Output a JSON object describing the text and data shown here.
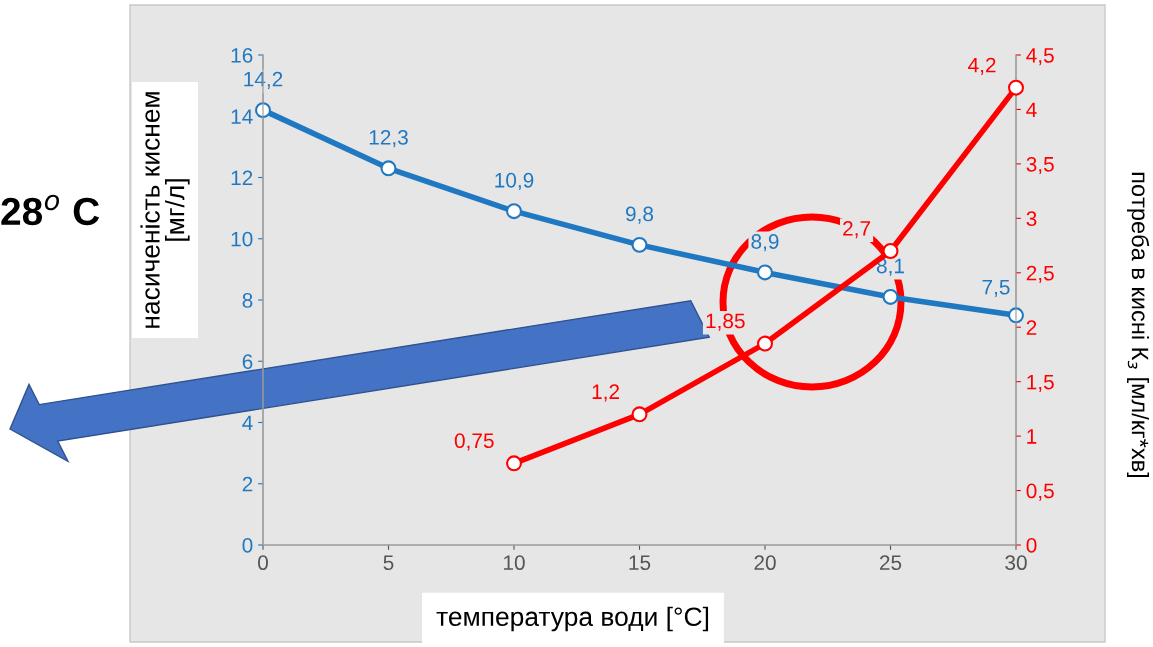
{
  "chart_data": {
    "type": "line",
    "x": [
      0,
      5,
      10,
      15,
      20,
      25,
      30
    ],
    "series": [
      {
        "color": "#1f78c1",
        "values": [
          14.2,
          12.3,
          10.9,
          9.8,
          8.9,
          8.1,
          7.5
        ],
        "value_labels": [
          "14,2",
          "12,3",
          "10,9",
          "9,8",
          "8,9",
          "8,1",
          "7,5"
        ]
      },
      {
        "color": "#ff0000",
        "axis": "y2",
        "x": [
          10,
          15,
          20,
          25,
          30
        ],
        "values": [
          0.75,
          1.2,
          1.85,
          2.7,
          4.2
        ],
        "value_labels": [
          "0,75",
          "1,2",
          "1,85",
          "2,7",
          "4,2"
        ]
      }
    ],
    "xlabel": "температура води [°C]",
    "ylabel": "насиченість киснем\n[мг/л]",
    "y2label": "потреба в кисні К$_{з}$ [мл/кг*хв]",
    "annotations": [
      "28$^{o}$ C"
    ],
    "xlim": [
      0,
      30
    ],
    "xticks": [
      0,
      5,
      10,
      15,
      20,
      25,
      30
    ],
    "ylim": [
      0,
      16
    ],
    "yticks": [
      0,
      2,
      4,
      6,
      8,
      10,
      12,
      14,
      16
    ],
    "y2lim": [
      0,
      4.5
    ],
    "y2ticks": [
      0,
      {
        "value": 0.5,
        "label": "0,5"
      },
      1,
      {
        "value": 1.5,
        "label": "1,5"
      },
      2,
      {
        "value": 2.5,
        "label": "2,5"
      },
      3,
      {
        "value": 3.5,
        "label": "3,5"
      },
      4,
      {
        "value": 4.5,
        "label": "4,5"
      }
    ],
    "marker": "circle",
    "line_style": "solid",
    "grid": false,
    "legend": false
  }
}
